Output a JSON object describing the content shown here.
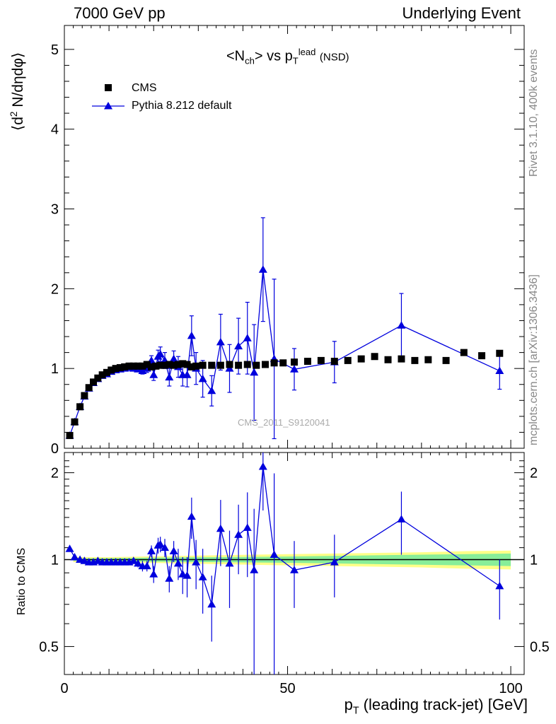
{
  "header": {
    "left": "7000 GeV pp",
    "right": "Underlying Event"
  },
  "side_text": {
    "rivet": "Rivet 3.1.10,  400k events",
    "mcplots": "mcplots.cern.ch [arXiv:1306.3436]"
  },
  "watermark": "CMS_2011_S9120041",
  "chart_data": [
    {
      "type": "scatter",
      "title": "<N_ch> vs p_T^lead (NSD)",
      "ylabel": "⟨d² N/dηdφ⟩",
      "xlabel": "p_T (leading track-jet) [GeV]",
      "xlim": [
        0,
        103
      ],
      "ylim": [
        0,
        5.3
      ],
      "y_ticks": [
        0,
        1,
        2,
        3,
        4,
        5
      ],
      "legend": [
        "CMS",
        "Pythia 8.212 default"
      ],
      "legend_position": "top-left",
      "series": [
        {
          "name": "CMS",
          "color": "#000000",
          "marker": "square",
          "points": [
            [
              1.2,
              0.16
            ],
            [
              2.3,
              0.33
            ],
            [
              3.5,
              0.52
            ],
            [
              4.5,
              0.66
            ],
            [
              5.5,
              0.76
            ],
            [
              6.5,
              0.83
            ],
            [
              7.5,
              0.88
            ],
            [
              8.5,
              0.92
            ],
            [
              9.5,
              0.95
            ],
            [
              10.5,
              0.98
            ],
            [
              11.5,
              1.0
            ],
            [
              12.5,
              1.01
            ],
            [
              13.5,
              1.02
            ],
            [
              14.5,
              1.03
            ],
            [
              15.5,
              1.03
            ],
            [
              16.5,
              1.03
            ],
            [
              17.5,
              1.03
            ],
            [
              18.5,
              1.05
            ],
            [
              19.5,
              1.02
            ],
            [
              20.5,
              1.03
            ],
            [
              21.5,
              1.04
            ],
            [
              22.5,
              1.04
            ],
            [
              23.5,
              1.05
            ],
            [
              24.5,
              1.04
            ],
            [
              25.5,
              1.05
            ],
            [
              26.5,
              1.06
            ],
            [
              27.5,
              1.05
            ],
            [
              28.5,
              1.02
            ],
            [
              29.5,
              1.03
            ],
            [
              31,
              1.04
            ],
            [
              33,
              1.04
            ],
            [
              35,
              1.04
            ],
            [
              37,
              1.05
            ],
            [
              39,
              1.04
            ],
            [
              41,
              1.05
            ],
            [
              43,
              1.04
            ],
            [
              45,
              1.05
            ],
            [
              47,
              1.07
            ],
            [
              49,
              1.07
            ],
            [
              51.5,
              1.08
            ],
            [
              54.5,
              1.09
            ],
            [
              57.5,
              1.1
            ],
            [
              60.5,
              1.09
            ],
            [
              63.5,
              1.1
            ],
            [
              66.5,
              1.12
            ],
            [
              69.5,
              1.15
            ],
            [
              72.5,
              1.11
            ],
            [
              75.5,
              1.12
            ],
            [
              78.5,
              1.1
            ],
            [
              81.5,
              1.11
            ],
            [
              85.5,
              1.1
            ],
            [
              89.5,
              1.2
            ],
            [
              93.5,
              1.16
            ],
            [
              97.5,
              1.19
            ]
          ]
        },
        {
          "name": "Pythia 8.212 default",
          "color": "#0000dd",
          "marker": "triangle",
          "points": [
            [
              1.2,
              0.16,
              0.02
            ],
            [
              2.3,
              0.33,
              0.02
            ],
            [
              3.5,
              0.52,
              0.02
            ],
            [
              4.5,
              0.65,
              0.02
            ],
            [
              5.5,
              0.75,
              0.02
            ],
            [
              6.5,
              0.82,
              0.02
            ],
            [
              7.5,
              0.87,
              0.02
            ],
            [
              8.5,
              0.91,
              0.02
            ],
            [
              9.5,
              0.93,
              0.02
            ],
            [
              10.5,
              0.96,
              0.02
            ],
            [
              11.5,
              0.98,
              0.02
            ],
            [
              12.5,
              0.99,
              0.02
            ],
            [
              13.5,
              1.0,
              0.02
            ],
            [
              14.5,
              1.01,
              0.02
            ],
            [
              15.5,
              1.0,
              0.03
            ],
            [
              16.5,
              0.99,
              0.03
            ],
            [
              17.5,
              0.97,
              0.04
            ],
            [
              18.5,
              1.0,
              0.05
            ],
            [
              19.5,
              1.1,
              0.06
            ],
            [
              20,
              0.92,
              0.07
            ],
            [
              21,
              1.15,
              0.08
            ],
            [
              21.5,
              1.18,
              0.09
            ],
            [
              22.5,
              1.1,
              0.1
            ],
            [
              23.5,
              0.89,
              0.11
            ],
            [
              24.5,
              1.12,
              0.1
            ],
            [
              25.5,
              1.02,
              0.13
            ],
            [
              26.5,
              0.92,
              0.14
            ],
            [
              27.5,
              0.92,
              0.15
            ],
            [
              28.5,
              1.41,
              0.25
            ],
            [
              29.5,
              1.0,
              0.2
            ],
            [
              31,
              0.87,
              0.23
            ],
            [
              33,
              0.72,
              0.19
            ],
            [
              35,
              1.33,
              0.35
            ],
            [
              37,
              1.0,
              0.3
            ],
            [
              39,
              1.28,
              0.35
            ],
            [
              41,
              1.38,
              0.45
            ],
            [
              42.5,
              0.95,
              0.6
            ],
            [
              44.5,
              2.24,
              0.65
            ],
            [
              47,
              1.12,
              1.0
            ],
            [
              51.5,
              0.99,
              0.26
            ],
            [
              60.5,
              1.08,
              0.26
            ],
            [
              75.5,
              1.54,
              0.4
            ],
            [
              97.5,
              0.97,
              0.23
            ]
          ]
        }
      ]
    },
    {
      "type": "scatter",
      "ylabel": "Ratio to CMS",
      "xlim": [
        0,
        103
      ],
      "ylim": [
        0.4,
        2.35
      ],
      "log_y": true,
      "y_ticks": [
        0.5,
        1,
        2
      ],
      "x_ticks": [
        0,
        50,
        100
      ],
      "series": [
        {
          "name": "Pythia 8.212 default",
          "color": "#0000dd",
          "marker": "triangle",
          "points": [
            [
              1.2,
              1.09,
              0.02
            ],
            [
              2.3,
              1.02,
              0.01
            ],
            [
              3.5,
              1.0,
              0.01
            ],
            [
              4.5,
              0.99,
              0.01
            ],
            [
              5.5,
              0.98,
              0.01
            ],
            [
              6.5,
              0.98,
              0.01
            ],
            [
              7.5,
              0.99,
              0.01
            ],
            [
              8.5,
              0.98,
              0.01
            ],
            [
              9.5,
              0.98,
              0.01
            ],
            [
              10.5,
              0.98,
              0.02
            ],
            [
              11.5,
              0.98,
              0.02
            ],
            [
              12.5,
              0.98,
              0.02
            ],
            [
              13.5,
              0.98,
              0.02
            ],
            [
              14.5,
              0.98,
              0.02
            ],
            [
              15.5,
              0.99,
              0.02
            ],
            [
              16.5,
              0.97,
              0.03
            ],
            [
              17.5,
              0.95,
              0.04
            ],
            [
              18.5,
              0.95,
              0.04
            ],
            [
              19.5,
              1.07,
              0.05
            ],
            [
              20,
              0.89,
              0.06
            ],
            [
              21,
              1.12,
              0.07
            ],
            [
              21.5,
              1.13,
              0.07
            ],
            [
              22.5,
              1.1,
              0.08
            ],
            [
              23.5,
              0.86,
              0.09
            ],
            [
              24.5,
              1.07,
              0.09
            ],
            [
              25.5,
              0.97,
              0.12
            ],
            [
              26.5,
              0.89,
              0.13
            ],
            [
              27.5,
              0.88,
              0.14
            ],
            [
              28.5,
              1.41,
              0.23
            ],
            [
              29.5,
              0.98,
              0.19
            ],
            [
              31,
              0.87,
              0.22
            ],
            [
              33,
              0.7,
              0.18
            ],
            [
              35,
              1.28,
              0.33
            ],
            [
              37,
              0.97,
              0.29
            ],
            [
              39,
              1.22,
              0.33
            ],
            [
              41,
              1.29,
              0.42
            ],
            [
              42.5,
              0.92,
              0.58
            ],
            [
              44.5,
              2.1,
              0.62
            ],
            [
              47,
              1.04,
              0.95
            ],
            [
              51.5,
              0.92,
              0.24
            ],
            [
              60.5,
              0.98,
              0.24
            ],
            [
              75.5,
              1.38,
              0.34
            ],
            [
              97.5,
              0.81,
              0.19
            ]
          ]
        }
      ]
    }
  ]
}
